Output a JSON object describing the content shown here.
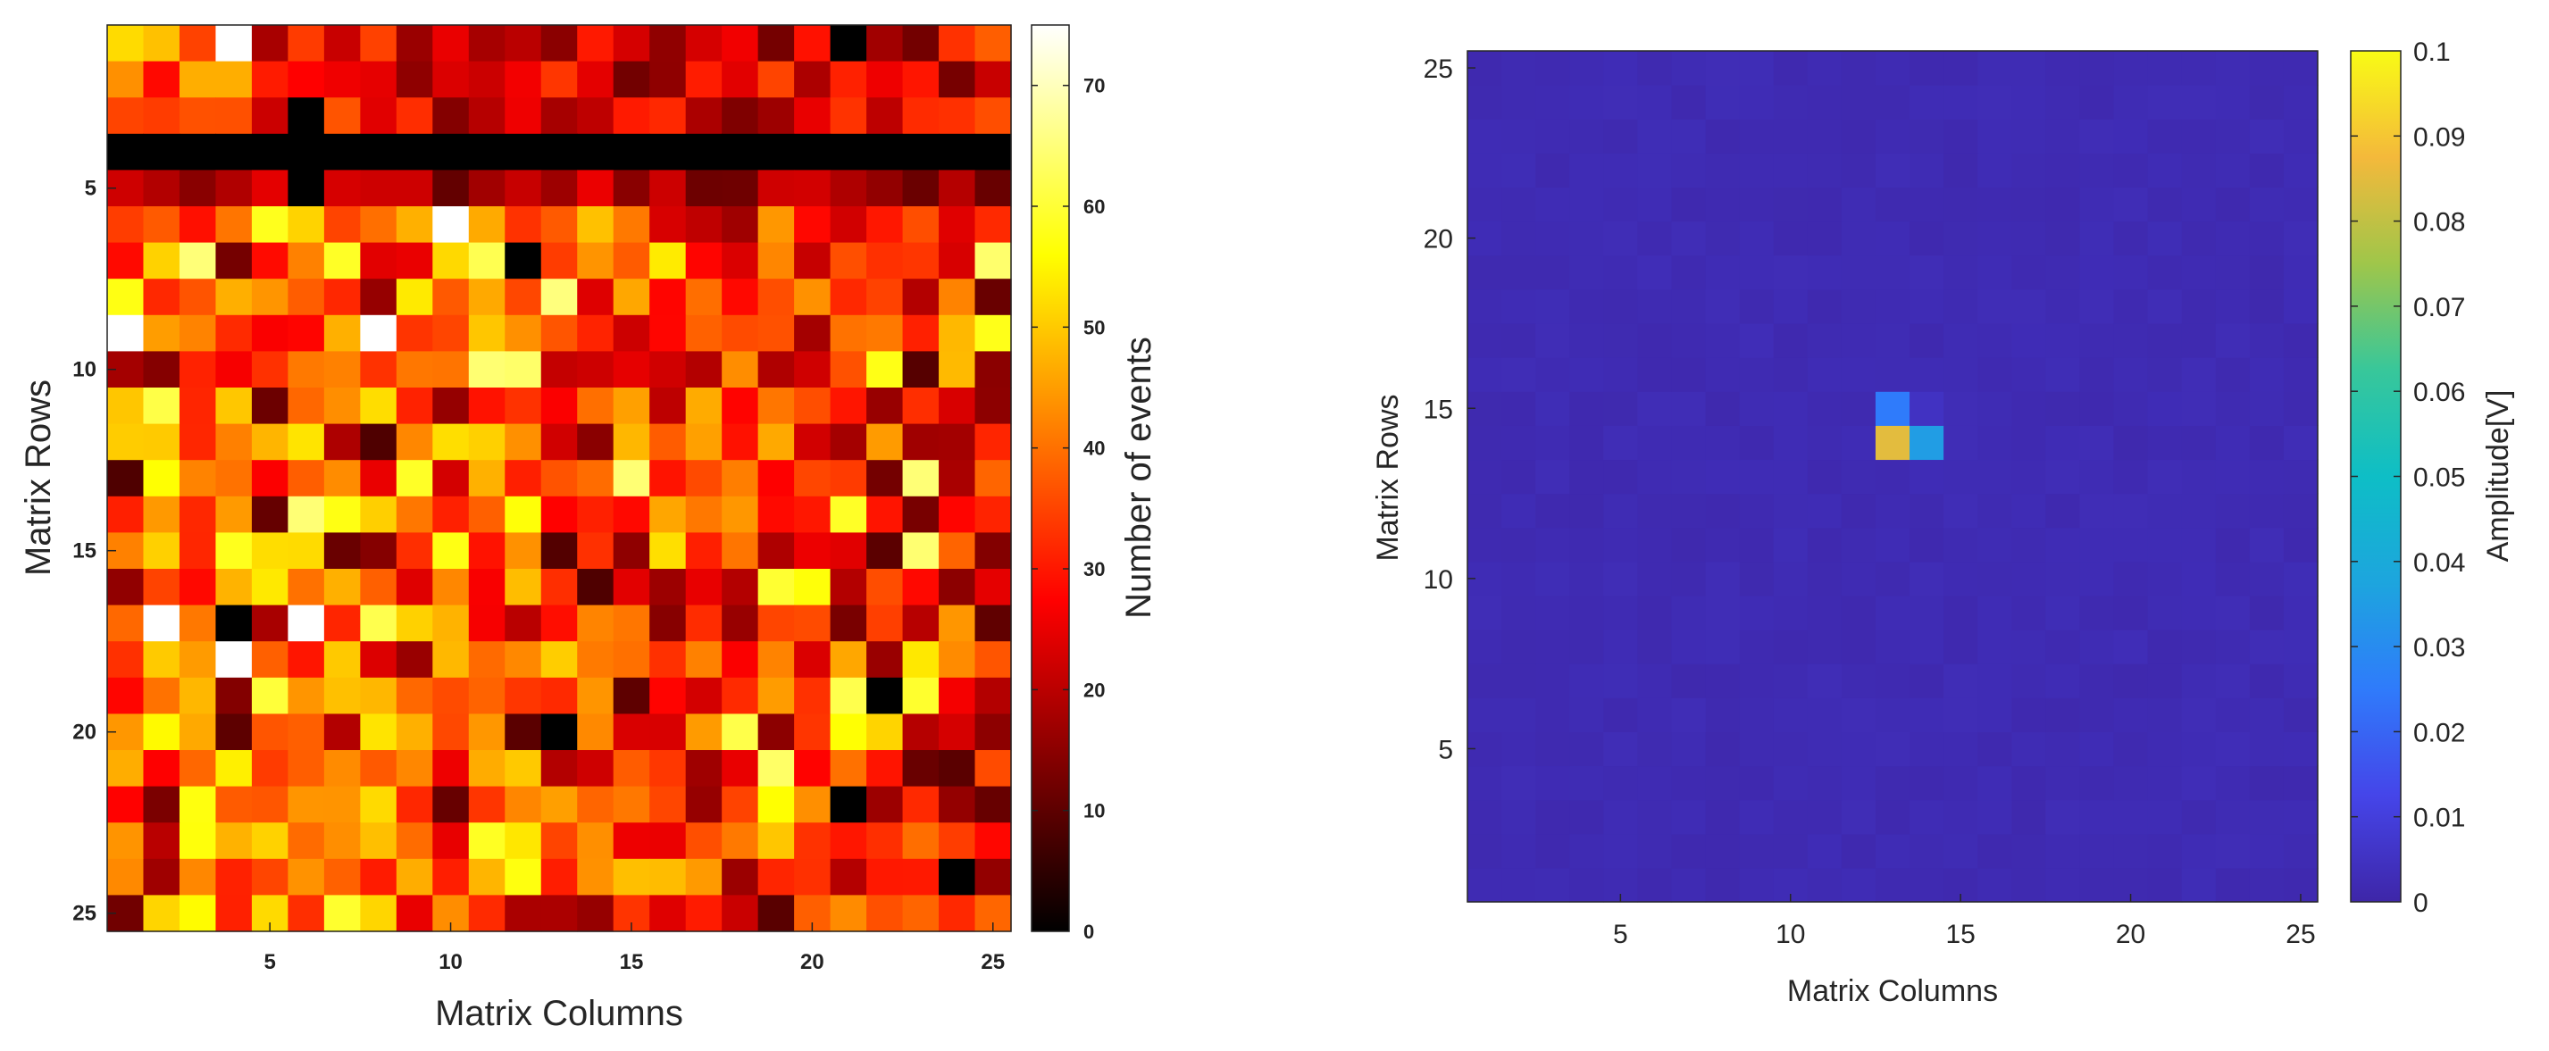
{
  "chart_data": [
    {
      "type": "heatmap",
      "colormap": "hot",
      "xlabel": "Matrix Columns",
      "ylabel": "Matrix Rows",
      "colorbar_label": "Number of events",
      "x_ticks": [
        5,
        10,
        15,
        20,
        25
      ],
      "y_ticks": [
        5,
        10,
        15,
        20,
        25
      ],
      "colorbar_ticks": [
        0,
        10,
        20,
        30,
        40,
        50,
        60,
        70
      ],
      "clim": [
        0,
        75
      ],
      "grid": false,
      "y_direction": "reverse",
      "rows": 25,
      "cols": 25,
      "dead_row": 4,
      "dead_column": 6,
      "dead_column_rows": [
        3,
        4,
        5
      ],
      "zero_cells": [
        [
          1,
          21
        ],
        [
          7,
          12
        ],
        [
          17,
          4
        ],
        [
          19,
          22
        ],
        [
          20,
          13
        ],
        [
          22,
          21
        ],
        [
          24,
          24
        ]
      ],
      "max_cells": [
        [
          1,
          4
        ],
        [
          6,
          10
        ],
        [
          9,
          1
        ],
        [
          9,
          8
        ],
        [
          17,
          2
        ],
        [
          17,
          6
        ],
        [
          18,
          4
        ]
      ],
      "values_note": "per-cell counts between 0 and 75"
    },
    {
      "type": "heatmap",
      "colormap": "parula",
      "xlabel": "Matrix Columns",
      "ylabel": "Matrix Rows",
      "colorbar_label": "Amplitude[V]",
      "x_ticks": [
        5,
        10,
        15,
        20,
        25
      ],
      "y_ticks": [
        5,
        10,
        15,
        20,
        25
      ],
      "colorbar_ticks": [
        "0",
        "0.01",
        "0.02",
        "0.03",
        "0.04",
        "0.05",
        "0.06",
        "0.07",
        "0.08",
        "0.09",
        "0.1"
      ],
      "clim": [
        0,
        0.1
      ],
      "grid": false,
      "y_direction": "normal",
      "rows": 25,
      "cols": 25,
      "background_value": 0.002,
      "hot_cells": [
        {
          "col": 13,
          "row": 15,
          "value": 0.025
        },
        {
          "col": 14,
          "row": 15,
          "value": 0.005
        },
        {
          "col": 13,
          "row": 14,
          "value": 0.085
        },
        {
          "col": 14,
          "row": 14,
          "value": 0.035
        }
      ]
    }
  ]
}
